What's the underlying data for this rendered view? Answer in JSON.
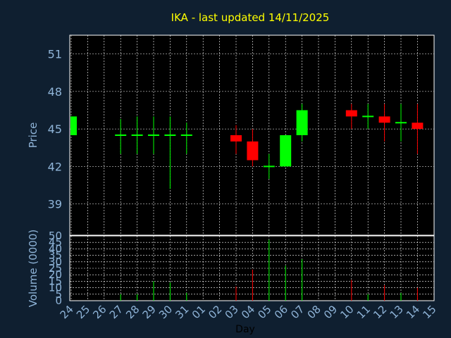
{
  "chart_data": {
    "type": "candlestick",
    "title": "IKA - last updated 14/11/2025",
    "xlabel": "Day",
    "price_panel": {
      "ylabel": "Price",
      "ylim": [
        36.5,
        52.5
      ],
      "yticks": [
        39,
        42,
        45,
        48,
        51
      ]
    },
    "volume_panel": {
      "ylabel": "Volume (0000)",
      "ylim": [
        0,
        50
      ],
      "yticks": [
        0,
        5,
        10,
        15,
        20,
        25,
        30,
        35,
        40,
        45,
        50
      ]
    },
    "x_ticks": [
      "24",
      "25",
      "26",
      "27",
      "28",
      "29",
      "30",
      "31",
      "01",
      "02",
      "03",
      "04",
      "05",
      "06",
      "07",
      "08",
      "09",
      "10",
      "11",
      "12",
      "13",
      "14",
      "15"
    ],
    "colors": {
      "up": "#00ff00",
      "down": "#ff0000",
      "background": "#0f1f30",
      "plot": "#000000",
      "grid": "#ffffff",
      "tick_text": "#8fb4d8",
      "title": "#ffff00"
    },
    "candles": [
      {
        "day": "24",
        "open": 44.5,
        "high": 46.0,
        "low": 44.5,
        "close": 46.0,
        "volume": 0
      },
      {
        "day": "27",
        "open": 44.5,
        "high": 45.8,
        "low": 43.0,
        "close": 44.5,
        "volume": 5
      },
      {
        "day": "28",
        "open": 44.5,
        "high": 46.0,
        "low": 43.0,
        "close": 44.5,
        "volume": 5
      },
      {
        "day": "29",
        "open": 44.5,
        "high": 46.0,
        "low": 43.0,
        "close": 44.5,
        "volume": 15
      },
      {
        "day": "30",
        "open": 44.5,
        "high": 46.0,
        "low": 40.2,
        "close": 44.5,
        "volume": 14
      },
      {
        "day": "31",
        "open": 44.5,
        "high": 45.5,
        "low": 43.0,
        "close": 44.5,
        "volume": 6
      },
      {
        "day": "03",
        "open": 44.5,
        "high": 45.3,
        "low": 43.0,
        "close": 44.0,
        "volume": 11
      },
      {
        "day": "04",
        "open": 44.0,
        "high": 45.0,
        "low": 42.0,
        "close": 42.5,
        "volume": 24
      },
      {
        "day": "05",
        "open": 42.0,
        "high": 43.0,
        "low": 41.0,
        "close": 42.0,
        "volume": 47
      },
      {
        "day": "06",
        "open": 42.0,
        "high": 44.5,
        "low": 42.0,
        "close": 44.5,
        "volume": 27
      },
      {
        "day": "07",
        "open": 44.5,
        "high": 47.0,
        "low": 44.0,
        "close": 46.5,
        "volume": 32
      },
      {
        "day": "10",
        "open": 46.5,
        "high": 47.0,
        "low": 45.0,
        "close": 46.0,
        "volume": 16
      },
      {
        "day": "11",
        "open": 46.0,
        "high": 47.0,
        "low": 45.0,
        "close": 46.0,
        "volume": 5
      },
      {
        "day": "12",
        "open": 46.0,
        "high": 47.0,
        "low": 44.0,
        "close": 45.5,
        "volume": 12
      },
      {
        "day": "13",
        "open": 45.5,
        "high": 47.0,
        "low": 44.0,
        "close": 45.5,
        "volume": 6
      },
      {
        "day": "14",
        "open": 45.5,
        "high": 47.0,
        "low": 43.0,
        "close": 45.0,
        "volume": 10
      }
    ]
  }
}
